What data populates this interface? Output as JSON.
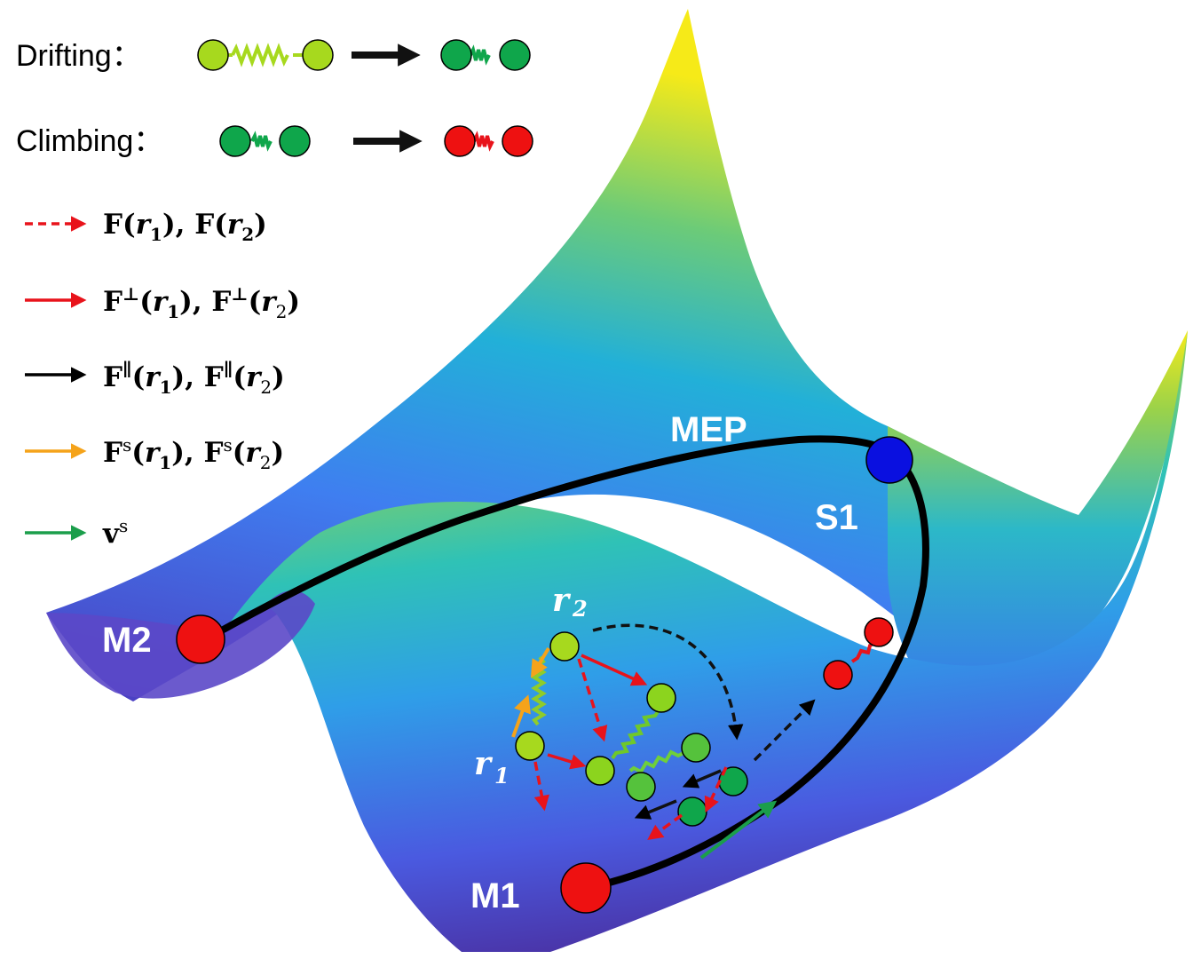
{
  "legend": {
    "drifting": "Drifting：",
    "climbing": "Climbing："
  },
  "forces": {
    "F_total": [
      "F(",
      "r",
      "1",
      "), F(",
      "r",
      "2",
      ")"
    ],
    "F_perp": [
      "F",
      "⊥",
      "(",
      "r",
      "1",
      "), F",
      "⊥",
      "(",
      "r",
      "2",
      ")"
    ],
    "F_par": [
      "F",
      "∥",
      "(",
      "r",
      "1",
      "), F",
      "∥",
      "(",
      "r",
      "2",
      ")"
    ],
    "F_s": [
      "F",
      "s",
      "(",
      "r",
      "1",
      "), F",
      "s",
      "(",
      "r",
      "2",
      ")"
    ],
    "v_s": [
      "v",
      "s"
    ]
  },
  "points": {
    "mep": "MEP",
    "s1": "S1",
    "m1": "M1",
    "m2": "M2",
    "r1": "r",
    "r1_sub": "1",
    "r2": "r",
    "r2_sub": "2"
  },
  "colors": {
    "force_red": "#e8131b",
    "parallel_black": "#000000",
    "spring_force_orange": "#f5a31a",
    "velocity_green": "#1b9e4b",
    "drifting_bead": "#a7d91e",
    "climbing_bead_green": "#0fa64b",
    "climbing_bead_red": "#ee1111",
    "saddle_blue": "#0a10e0"
  }
}
